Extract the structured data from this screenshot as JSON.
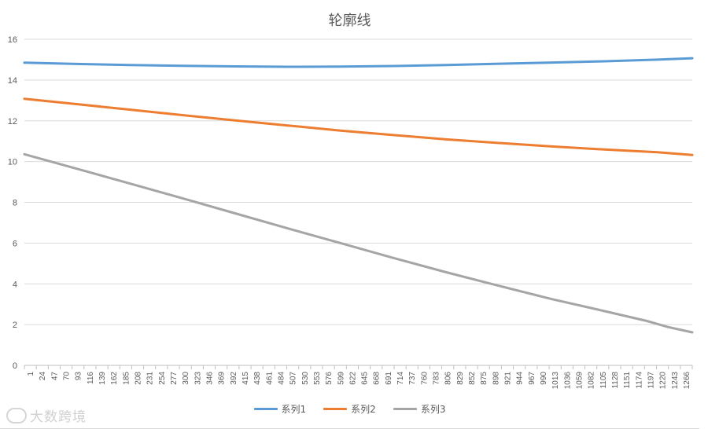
{
  "chart_data": {
    "type": "line",
    "title": "轮廓线",
    "x": [
      1,
      1266
    ],
    "xtick_labels": [
      "1",
      "24",
      "47",
      "70",
      "93",
      "116",
      "139",
      "162",
      "185",
      "208",
      "231",
      "254",
      "277",
      "300",
      "323",
      "346",
      "369",
      "392",
      "415",
      "438",
      "461",
      "484",
      "507",
      "530",
      "553",
      "576",
      "599",
      "622",
      "645",
      "668",
      "691",
      "714",
      "737",
      "760",
      "783",
      "806",
      "829",
      "852",
      "875",
      "898",
      "921",
      "944",
      "967",
      "990",
      "1013",
      "1036",
      "1059",
      "1082",
      "1105",
      "1128",
      "1151",
      "1174",
      "1197",
      "1220",
      "1243",
      "1266"
    ],
    "ytick_labels": [
      "0",
      "2",
      "4",
      "6",
      "8",
      "10",
      "12",
      "14",
      "16"
    ],
    "ylim": [
      0,
      16
    ],
    "xlim": [
      1,
      1266
    ],
    "grid": true,
    "legend_position": "bottom",
    "series": [
      {
        "name": "系列1",
        "color": "#5b9bd5",
        "points": [
          [
            1,
            14.85
          ],
          [
            100,
            14.79
          ],
          [
            200,
            14.74
          ],
          [
            300,
            14.7
          ],
          [
            400,
            14.67
          ],
          [
            500,
            14.65
          ],
          [
            600,
            14.66
          ],
          [
            700,
            14.69
          ],
          [
            800,
            14.74
          ],
          [
            900,
            14.8
          ],
          [
            1000,
            14.86
          ],
          [
            1100,
            14.92
          ],
          [
            1200,
            15.0
          ],
          [
            1266,
            15.07
          ]
        ]
      },
      {
        "name": "系列2",
        "color": "#ed7d31",
        "points": [
          [
            1,
            13.08
          ],
          [
            100,
            12.82
          ],
          [
            200,
            12.55
          ],
          [
            300,
            12.28
          ],
          [
            400,
            12.02
          ],
          [
            500,
            11.77
          ],
          [
            600,
            11.52
          ],
          [
            700,
            11.3
          ],
          [
            800,
            11.09
          ],
          [
            900,
            10.91
          ],
          [
            1000,
            10.74
          ],
          [
            1100,
            10.59
          ],
          [
            1200,
            10.46
          ],
          [
            1266,
            10.32
          ]
        ]
      },
      {
        "name": "系列3",
        "color": "#a5a5a5",
        "points": [
          [
            1,
            10.36
          ],
          [
            100,
            9.65
          ],
          [
            200,
            8.93
          ],
          [
            300,
            8.2
          ],
          [
            400,
            7.46
          ],
          [
            500,
            6.72
          ],
          [
            600,
            6.0
          ],
          [
            700,
            5.27
          ],
          [
            800,
            4.57
          ],
          [
            900,
            3.9
          ],
          [
            1000,
            3.25
          ],
          [
            1100,
            2.66
          ],
          [
            1180,
            2.18
          ],
          [
            1220,
            1.88
          ],
          [
            1266,
            1.62
          ]
        ]
      }
    ]
  },
  "watermark": {
    "text": "大数跨境"
  }
}
